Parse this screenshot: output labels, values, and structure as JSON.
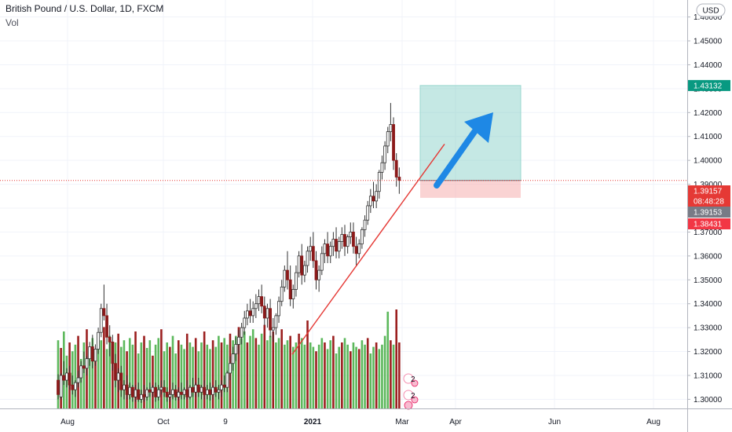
{
  "header": {
    "title": "British Pound / U.S. Dollar, 1D, FXCM",
    "volume_label": "Vol"
  },
  "currency_button": "USD",
  "colors": {
    "up_candle": "#ffffff",
    "down_candle": "#8b1a1a",
    "wick": "#333333",
    "vol_up": "#5cb85c",
    "vol_down": "#9b1f1f",
    "target_zone": "#7fcdc3",
    "stop_zone": "#f7b6b6",
    "trendline": "#e53935",
    "arrow": "#1e88e5",
    "tag_target": "#089981",
    "tag_price": "#e53935",
    "tag_gray": "#787b86",
    "tag_stop": "#f23645"
  },
  "chart_data": {
    "type": "candlestick",
    "title": "British Pound / U.S. Dollar, 1D, FXCM",
    "ylim": [
      1.2975,
      1.4625
    ],
    "y_ticks": [
      "1.30000",
      "1.31000",
      "1.32000",
      "1.33000",
      "1.34000",
      "1.35000",
      "1.36000",
      "1.37000",
      "1.38000",
      "1.39000",
      "1.40000",
      "1.41000",
      "1.42000",
      "1.43000",
      "1.44000",
      "1.45000",
      "1.46000"
    ],
    "x_ticks": [
      "Aug",
      "Oct",
      "9",
      "2021",
      "Mar",
      "Apr",
      "Jun",
      "Aug"
    ],
    "grid": true,
    "price_tags": [
      {
        "label": "1.43132",
        "value": 1.43132,
        "kind": "target"
      },
      {
        "label": "1.39157",
        "value": 1.39157,
        "kind": "price"
      },
      {
        "label": "08:48:28",
        "value": 1.39157,
        "kind": "countdown"
      },
      {
        "label": "1.39153",
        "value": 1.39153,
        "kind": "gray"
      },
      {
        "label": "1.38431",
        "value": 1.38431,
        "kind": "stop"
      }
    ],
    "position": {
      "entry": 1.39157,
      "target": 1.43132,
      "stop": 1.38431
    },
    "trendline": {
      "from": 1.3188,
      "to": 1.4068
    },
    "event_badges": [
      "2",
      "2"
    ],
    "candles": [
      [
        1.308,
        1.3105,
        1.302,
        1.3
      ],
      [
        1.301,
        1.311,
        1.31,
        1.3
      ],
      [
        1.31,
        1.316,
        1.308,
        1.306
      ],
      [
        1.308,
        1.313,
        1.311,
        1.305
      ],
      [
        1.311,
        1.314,
        1.306,
        1.304
      ],
      [
        1.306,
        1.31,
        1.304,
        1.302
      ],
      [
        1.304,
        1.308,
        1.307,
        1.301
      ],
      [
        1.307,
        1.312,
        1.309,
        1.305
      ],
      [
        1.309,
        1.316,
        1.314,
        1.307
      ],
      [
        1.314,
        1.32,
        1.313,
        1.311
      ],
      [
        1.313,
        1.318,
        1.317,
        1.31
      ],
      [
        1.317,
        1.324,
        1.322,
        1.314
      ],
      [
        1.322,
        1.327,
        1.316,
        1.313
      ],
      [
        1.316,
        1.323,
        1.321,
        1.314
      ],
      [
        1.321,
        1.33,
        1.328,
        1.319
      ],
      [
        1.328,
        1.34,
        1.338,
        1.326
      ],
      [
        1.338,
        1.348,
        1.335,
        1.333
      ],
      [
        1.335,
        1.34,
        1.326,
        1.323
      ],
      [
        1.326,
        1.331,
        1.324,
        1.318
      ],
      [
        1.324,
        1.327,
        1.315,
        1.312
      ],
      [
        1.315,
        1.319,
        1.308,
        1.305
      ],
      [
        1.308,
        1.313,
        1.311,
        1.303
      ],
      [
        1.311,
        1.314,
        1.304,
        1.301
      ],
      [
        1.304,
        1.308,
        1.306,
        1.3
      ],
      [
        1.306,
        1.31,
        1.302,
        1.3
      ],
      [
        1.302,
        1.307,
        1.305,
        1.3
      ],
      [
        1.305,
        1.306,
        1.301,
        1.299
      ],
      [
        1.301,
        1.306,
        1.304,
        1.299
      ],
      [
        1.304,
        1.307,
        1.3,
        1.299
      ],
      [
        1.3,
        1.304,
        1.302,
        1.2985
      ],
      [
        1.302,
        1.306,
        1.301,
        1.299
      ],
      [
        1.301,
        1.305,
        1.304,
        1.2995
      ],
      [
        1.304,
        1.307,
        1.303,
        1.301
      ],
      [
        1.303,
        1.306,
        1.305,
        1.301
      ],
      [
        1.305,
        1.307,
        1.301,
        1.299
      ],
      [
        1.301,
        1.306,
        1.304,
        1.2995
      ],
      [
        1.304,
        1.308,
        1.305,
        1.302
      ],
      [
        1.305,
        1.308,
        1.303,
        1.301
      ],
      [
        1.303,
        1.305,
        1.301,
        1.299
      ],
      [
        1.301,
        1.304,
        1.302,
        1.299
      ],
      [
        1.302,
        1.307,
        1.304,
        1.3
      ],
      [
        1.304,
        1.306,
        1.301,
        1.2995
      ],
      [
        1.301,
        1.305,
        1.303,
        1.2995
      ],
      [
        1.303,
        1.307,
        1.302,
        1.3
      ],
      [
        1.302,
        1.305,
        1.304,
        1.3
      ],
      [
        1.304,
        1.308,
        1.301,
        1.3
      ],
      [
        1.301,
        1.306,
        1.305,
        1.3
      ],
      [
        1.305,
        1.309,
        1.303,
        1.301
      ],
      [
        1.303,
        1.307,
        1.306,
        1.301
      ],
      [
        1.306,
        1.309,
        1.303,
        1.301
      ],
      [
        1.303,
        1.306,
        1.305,
        1.3
      ],
      [
        1.305,
        1.308,
        1.302,
        1.3
      ],
      [
        1.302,
        1.306,
        1.304,
        1.3
      ],
      [
        1.304,
        1.307,
        1.302,
        1.2995
      ],
      [
        1.302,
        1.306,
        1.305,
        1.3
      ],
      [
        1.305,
        1.308,
        1.303,
        1.301
      ],
      [
        1.303,
        1.306,
        1.304,
        1.3
      ],
      [
        1.304,
        1.308,
        1.306,
        1.301
      ],
      [
        1.306,
        1.31,
        1.305,
        1.303
      ],
      [
        1.305,
        1.312,
        1.311,
        1.303
      ],
      [
        1.311,
        1.318,
        1.315,
        1.308
      ],
      [
        1.315,
        1.322,
        1.319,
        1.312
      ],
      [
        1.319,
        1.326,
        1.323,
        1.316
      ],
      [
        1.323,
        1.329,
        1.326,
        1.319
      ],
      [
        1.326,
        1.332,
        1.33,
        1.323
      ],
      [
        1.33,
        1.337,
        1.334,
        1.327
      ],
      [
        1.334,
        1.34,
        1.337,
        1.331
      ],
      [
        1.337,
        1.342,
        1.335,
        1.332
      ],
      [
        1.335,
        1.341,
        1.338,
        1.332
      ],
      [
        1.338,
        1.344,
        1.34,
        1.334
      ],
      [
        1.34,
        1.346,
        1.343,
        1.337
      ],
      [
        1.343,
        1.348,
        1.339,
        1.336
      ],
      [
        1.339,
        1.343,
        1.334,
        1.331
      ],
      [
        1.334,
        1.34,
        1.338,
        1.33
      ],
      [
        1.338,
        1.342,
        1.329,
        1.326
      ],
      [
        1.329,
        1.334,
        1.33,
        1.324
      ],
      [
        1.33,
        1.336,
        1.335,
        1.327
      ],
      [
        1.335,
        1.343,
        1.341,
        1.332
      ],
      [
        1.341,
        1.35,
        1.347,
        1.339
      ],
      [
        1.347,
        1.356,
        1.354,
        1.345
      ],
      [
        1.354,
        1.362,
        1.35,
        1.346
      ],
      [
        1.35,
        1.356,
        1.342,
        1.339
      ],
      [
        1.342,
        1.348,
        1.346,
        1.338
      ],
      [
        1.346,
        1.356,
        1.353,
        1.343
      ],
      [
        1.353,
        1.362,
        1.36,
        1.351
      ],
      [
        1.36,
        1.365,
        1.352,
        1.348
      ],
      [
        1.352,
        1.358,
        1.356,
        1.349
      ],
      [
        1.356,
        1.364,
        1.362,
        1.353
      ],
      [
        1.362,
        1.368,
        1.364,
        1.358
      ],
      [
        1.364,
        1.37,
        1.358,
        1.355
      ],
      [
        1.358,
        1.362,
        1.35,
        1.346
      ],
      [
        1.35,
        1.356,
        1.354,
        1.345
      ],
      [
        1.354,
        1.364,
        1.361,
        1.352
      ],
      [
        1.361,
        1.367,
        1.365,
        1.357
      ],
      [
        1.365,
        1.37,
        1.36,
        1.357
      ],
      [
        1.36,
        1.366,
        1.364,
        1.357
      ],
      [
        1.364,
        1.37,
        1.367,
        1.36
      ],
      [
        1.367,
        1.372,
        1.362,
        1.359
      ],
      [
        1.362,
        1.368,
        1.366,
        1.359
      ],
      [
        1.366,
        1.372,
        1.369,
        1.363
      ],
      [
        1.369,
        1.373,
        1.364,
        1.36
      ],
      [
        1.364,
        1.369,
        1.368,
        1.361
      ],
      [
        1.368,
        1.374,
        1.37,
        1.365
      ],
      [
        1.37,
        1.374,
        1.364,
        1.361
      ],
      [
        1.364,
        1.368,
        1.361,
        1.356
      ],
      [
        1.361,
        1.367,
        1.365,
        1.359
      ],
      [
        1.365,
        1.372,
        1.371,
        1.363
      ],
      [
        1.371,
        1.377,
        1.375,
        1.368
      ],
      [
        1.375,
        1.383,
        1.381,
        1.373
      ],
      [
        1.381,
        1.388,
        1.385,
        1.378
      ],
      [
        1.385,
        1.391,
        1.383,
        1.38
      ],
      [
        1.383,
        1.39,
        1.387,
        1.38
      ],
      [
        1.387,
        1.396,
        1.395,
        1.384
      ],
      [
        1.395,
        1.402,
        1.399,
        1.392
      ],
      [
        1.399,
        1.408,
        1.406,
        1.396
      ],
      [
        1.406,
        1.414,
        1.412,
        1.403
      ],
      [
        1.412,
        1.424,
        1.415,
        1.408
      ],
      [
        1.415,
        1.418,
        1.4,
        1.396
      ],
      [
        1.4,
        1.403,
        1.393,
        1.389
      ],
      [
        1.393,
        1.397,
        1.3916,
        1.386
      ]
    ],
    "volumes": [
      [
        0.62,
        1
      ],
      [
        0.55,
        0
      ],
      [
        0.7,
        1
      ],
      [
        0.48,
        1
      ],
      [
        0.6,
        0
      ],
      [
        0.52,
        1
      ],
      [
        0.58,
        1
      ],
      [
        0.66,
        0
      ],
      [
        0.45,
        1
      ],
      [
        0.6,
        1
      ],
      [
        0.72,
        0
      ],
      [
        0.55,
        1
      ],
      [
        0.64,
        1
      ],
      [
        0.5,
        0
      ],
      [
        0.58,
        1
      ],
      [
        0.62,
        1
      ],
      [
        0.74,
        0
      ],
      [
        0.54,
        1
      ],
      [
        0.66,
        1
      ],
      [
        0.48,
        0
      ],
      [
        0.6,
        1
      ],
      [
        0.68,
        0
      ],
      [
        0.56,
        1
      ],
      [
        0.62,
        1
      ],
      [
        0.52,
        0
      ],
      [
        0.64,
        1
      ],
      [
        0.58,
        1
      ],
      [
        0.7,
        0
      ],
      [
        0.5,
        1
      ],
      [
        0.6,
        1
      ],
      [
        0.66,
        0
      ],
      [
        0.55,
        1
      ],
      [
        0.62,
        1
      ],
      [
        0.48,
        0
      ],
      [
        0.58,
        1
      ],
      [
        0.64,
        1
      ],
      [
        0.72,
        0
      ],
      [
        0.52,
        1
      ],
      [
        0.6,
        1
      ],
      [
        0.56,
        0
      ],
      [
        0.66,
        1
      ],
      [
        0.5,
        1
      ],
      [
        0.62,
        0
      ],
      [
        0.58,
        1
      ],
      [
        0.54,
        1
      ],
      [
        0.68,
        0
      ],
      [
        0.6,
        1
      ],
      [
        0.56,
        1
      ],
      [
        0.64,
        0
      ],
      [
        0.52,
        1
      ],
      [
        0.6,
        1
      ],
      [
        0.7,
        0
      ],
      [
        0.58,
        1
      ],
      [
        0.54,
        1
      ],
      [
        0.62,
        0
      ],
      [
        0.56,
        1
      ],
      [
        0.66,
        1
      ],
      [
        0.6,
        0
      ],
      [
        0.64,
        1
      ],
      [
        0.58,
        1
      ],
      [
        0.68,
        0
      ],
      [
        0.62,
        1
      ],
      [
        0.66,
        1
      ],
      [
        0.74,
        0
      ],
      [
        0.64,
        1
      ],
      [
        0.7,
        1
      ],
      [
        0.6,
        0
      ],
      [
        0.66,
        1
      ],
      [
        0.72,
        1
      ],
      [
        0.64,
        0
      ],
      [
        0.58,
        1
      ],
      [
        0.68,
        1
      ],
      [
        0.76,
        0
      ],
      [
        0.62,
        1
      ],
      [
        0.66,
        1
      ],
      [
        0.7,
        0
      ],
      [
        0.6,
        1
      ],
      [
        0.64,
        1
      ],
      [
        0.72,
        0
      ],
      [
        0.58,
        1
      ],
      [
        0.62,
        1
      ],
      [
        0.66,
        0
      ],
      [
        0.56,
        1
      ],
      [
        0.6,
        1
      ],
      [
        0.68,
        0
      ],
      [
        0.64,
        1
      ],
      [
        0.58,
        1
      ],
      [
        0.8,
        0
      ],
      [
        0.6,
        1
      ],
      [
        0.56,
        1
      ],
      [
        0.52,
        0
      ],
      [
        0.58,
        1
      ],
      [
        0.64,
        1
      ],
      [
        0.6,
        0
      ],
      [
        0.54,
        1
      ],
      [
        0.62,
        1
      ],
      [
        0.66,
        0
      ],
      [
        0.5,
        1
      ],
      [
        0.56,
        1
      ],
      [
        0.6,
        0
      ],
      [
        0.64,
        1
      ],
      [
        0.58,
        1
      ],
      [
        0.52,
        0
      ],
      [
        0.6,
        1
      ],
      [
        0.56,
        1
      ],
      [
        0.54,
        0
      ],
      [
        0.62,
        1
      ],
      [
        0.58,
        1
      ],
      [
        0.64,
        0
      ],
      [
        0.5,
        1
      ],
      [
        0.56,
        1
      ],
      [
        0.6,
        0
      ],
      [
        0.54,
        1
      ],
      [
        0.58,
        1
      ],
      [
        0.66,
        1
      ],
      [
        0.88,
        1
      ],
      [
        0.62,
        0
      ],
      [
        0.58,
        1
      ],
      [
        0.9,
        0
      ],
      [
        0.6,
        0
      ]
    ]
  }
}
